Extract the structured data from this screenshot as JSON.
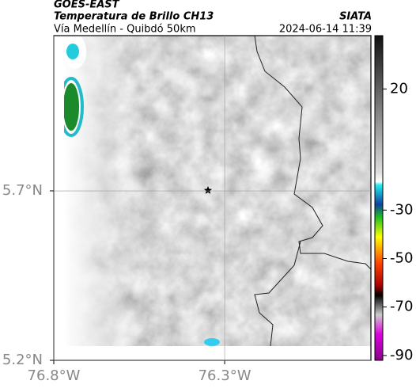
{
  "header": {
    "agency": "GOES-EAST",
    "product": "Temperatura de Brillo CH13",
    "route": "Vía Medellín - Quibdó 50km",
    "source": "SIATA",
    "datetime": "2024-06-14 11:39"
  },
  "map": {
    "xlim": [
      -76.8,
      -75.872
    ],
    "ylim": [
      5.2,
      6.158
    ],
    "xticks": [
      {
        "value": -76.8,
        "label": "76.8°W"
      },
      {
        "value": -76.3,
        "label": "76.3°W"
      }
    ],
    "yticks": [
      {
        "value": 5.7,
        "label": "5.7°N"
      },
      {
        "value": 5.2,
        "label": "5.2°N"
      }
    ]
  },
  "colorbar": {
    "lim": [
      -92,
      42
    ],
    "ticks": [
      20,
      -30,
      -50,
      -70,
      -90
    ]
  }
}
